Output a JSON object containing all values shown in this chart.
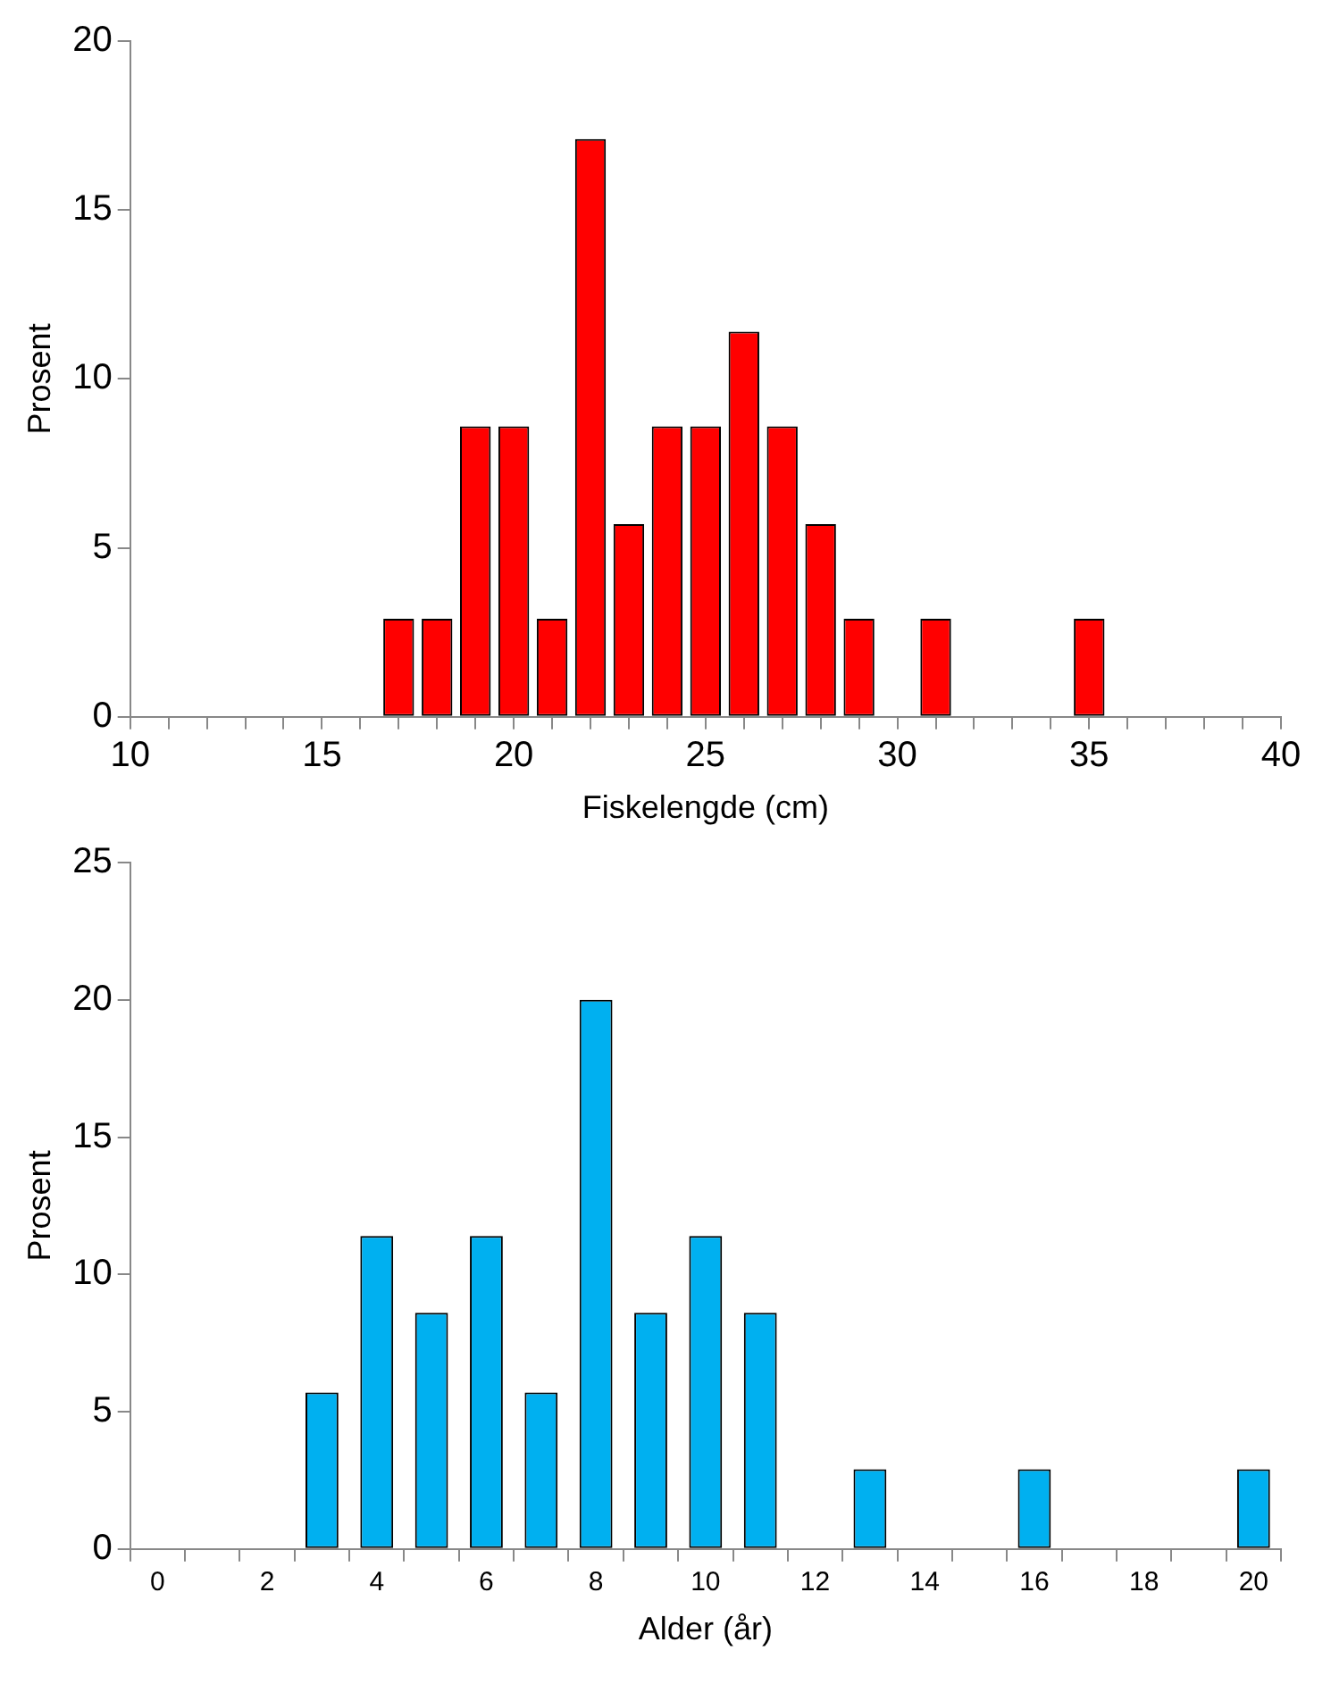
{
  "chart_data": [
    {
      "type": "bar",
      "xlabel": "Fiskelengde (cm)",
      "ylabel": "Prosent",
      "x": [
        17,
        18,
        19,
        20,
        21,
        22,
        23,
        24,
        25,
        26,
        27,
        28,
        29,
        31,
        35
      ],
      "values": [
        2.9,
        2.9,
        8.6,
        8.6,
        2.9,
        17.1,
        5.7,
        8.6,
        8.6,
        11.4,
        8.6,
        5.7,
        2.9,
        2.9,
        2.9
      ],
      "color": "#ff0000",
      "xlim": [
        10,
        40
      ],
      "xticks": [
        10,
        {
          "value": 11,
          "label": null
        },
        {
          "value": 12,
          "label": null
        },
        {
          "value": 13,
          "label": null
        },
        {
          "value": 14,
          "label": null
        },
        15,
        {
          "value": 16,
          "label": null
        },
        {
          "value": 17,
          "label": null
        },
        {
          "value": 18,
          "label": null
        },
        {
          "value": 19,
          "label": null
        },
        20,
        {
          "value": 21,
          "label": null
        },
        {
          "value": 22,
          "label": null
        },
        {
          "value": 23,
          "label": null
        },
        {
          "value": 24,
          "label": null
        },
        25,
        {
          "value": 26,
          "label": null
        },
        {
          "value": 27,
          "label": null
        },
        {
          "value": 28,
          "label": null
        },
        {
          "value": 29,
          "label": null
        },
        30,
        {
          "value": 31,
          "label": null
        },
        {
          "value": 32,
          "label": null
        },
        {
          "value": 33,
          "label": null
        },
        {
          "value": 34,
          "label": null
        },
        35,
        {
          "value": 36,
          "label": null
        },
        {
          "value": 37,
          "label": null
        },
        {
          "value": 38,
          "label": null
        },
        {
          "value": 39,
          "label": null
        },
        40
      ],
      "ylim": [
        0,
        20
      ],
      "yticks": [
        0,
        5,
        10,
        15,
        20
      ],
      "grid": false,
      "legend": false
    },
    {
      "type": "bar",
      "xlabel": "Alder (år)",
      "ylabel": "Prosent",
      "categories": [
        "0",
        null,
        "2",
        null,
        "4",
        null,
        "6",
        null,
        "8",
        null,
        "10",
        null,
        "12",
        null,
        "14",
        null,
        "16",
        null,
        "18",
        null,
        "20"
      ],
      "values": [
        0,
        0,
        0,
        5.7,
        11.4,
        8.6,
        11.4,
        5.7,
        20,
        8.6,
        11.4,
        8.6,
        0,
        2.9,
        0,
        0,
        2.9,
        0,
        0,
        0,
        2.9
      ],
      "color": "#00b0f0",
      "ylim": [
        0,
        25
      ],
      "yticks": [
        0,
        5,
        10,
        15,
        20,
        25
      ],
      "grid": false,
      "legend": false
    }
  ]
}
